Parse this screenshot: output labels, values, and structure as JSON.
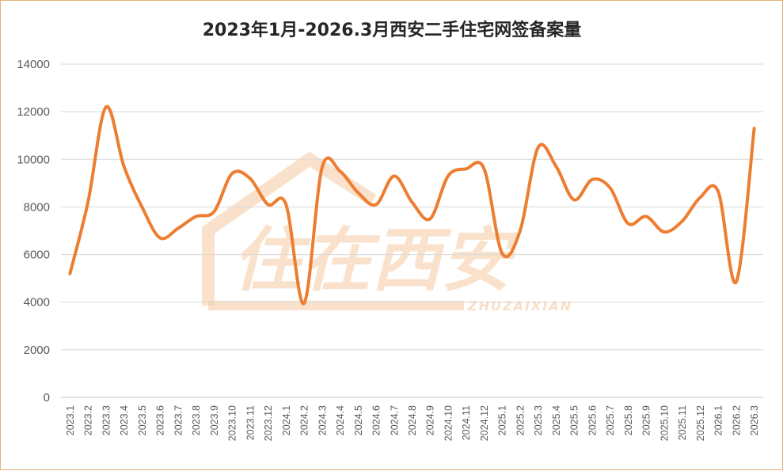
{
  "chart_data": {
    "type": "line",
    "title": "2023年1月-2026.3月西安二手住宅网签备案量",
    "xlabel": "",
    "ylabel": "",
    "ylim": [
      0,
      14000
    ],
    "yticks": [
      "0",
      "2000",
      "4000",
      "6000",
      "8000",
      "10000",
      "12000",
      "14000"
    ],
    "grid": true,
    "legend": "none",
    "line_color": "#ed7d31",
    "categories": [
      "2023.1",
      "2023.2",
      "2023.3",
      "2023.4",
      "2023.5",
      "2023.6",
      "2023.7",
      "2023.8",
      "2023.9",
      "2023.10",
      "2023.11",
      "2023.12",
      "2024.1",
      "2024.2",
      "2024.3",
      "2024.4",
      "2024.5",
      "2024.6",
      "2024.7",
      "2024.8",
      "2024.9",
      "2024.10",
      "2024.11",
      "2024.12",
      "2025.1",
      "2025.2",
      "2025.3",
      "2025.4",
      "2025.5",
      "2025.6",
      "2025.7",
      "2025.8",
      "2025.9",
      "2025.10",
      "2025.11",
      "2025.12",
      "2026.1",
      "2026.2",
      "2026.3"
    ],
    "values": [
      5200,
      8200,
      12200,
      9700,
      8000,
      6700,
      7100,
      7600,
      7800,
      9400,
      9200,
      8100,
      8100,
      3950,
      9650,
      9500,
      8600,
      8100,
      9300,
      8200,
      7500,
      9300,
      9600,
      9600,
      6050,
      7000,
      10500,
      9700,
      8300,
      9150,
      8800,
      7300,
      7600,
      6950,
      7400,
      8400,
      8650,
      4850,
      11300
    ]
  },
  "watermark": {
    "text": "住在西安",
    "subtext": "ZHUZAIXIAN",
    "color": "#f6c9a1"
  }
}
